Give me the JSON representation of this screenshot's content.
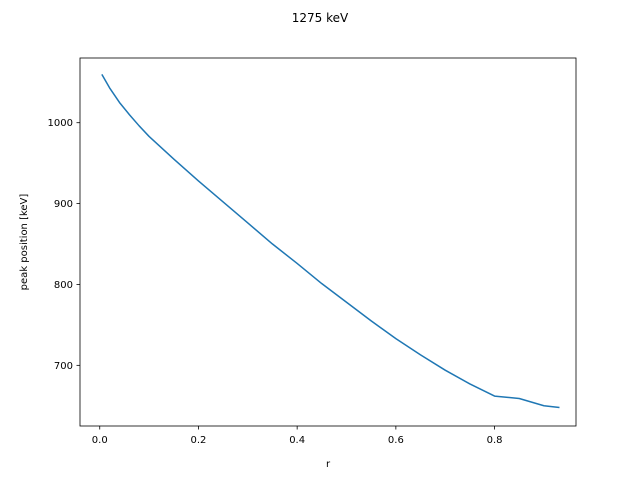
{
  "chart_data": {
    "type": "line",
    "title": "1275 keV",
    "xlabel": "r",
    "ylabel": "peak position [keV]",
    "xlim": [
      -0.04,
      0.965
    ],
    "ylim": [
      625,
      1080
    ],
    "xticks": [
      0.0,
      0.2,
      0.4,
      0.6,
      0.8
    ],
    "xtick_labels": [
      "0.0",
      "0.2",
      "0.4",
      "0.6",
      "0.8"
    ],
    "yticks": [
      700,
      800,
      900,
      1000
    ],
    "ytick_labels": [
      "700",
      "800",
      "900",
      "1000"
    ],
    "grid": false,
    "legend": "none",
    "series": [
      {
        "color": "#1f77b4",
        "x": [
          0.005,
          0.02,
          0.04,
          0.06,
          0.08,
          0.1,
          0.15,
          0.2,
          0.25,
          0.3,
          0.35,
          0.4,
          0.45,
          0.5,
          0.55,
          0.6,
          0.65,
          0.7,
          0.75,
          0.8,
          0.85,
          0.9,
          0.93
        ],
        "y": [
          1059,
          1043,
          1025,
          1010,
          996,
          983,
          955,
          928,
          902,
          876,
          850,
          826,
          801,
          778,
          755,
          733,
          713,
          694,
          677,
          662,
          659,
          650,
          648
        ]
      }
    ]
  }
}
